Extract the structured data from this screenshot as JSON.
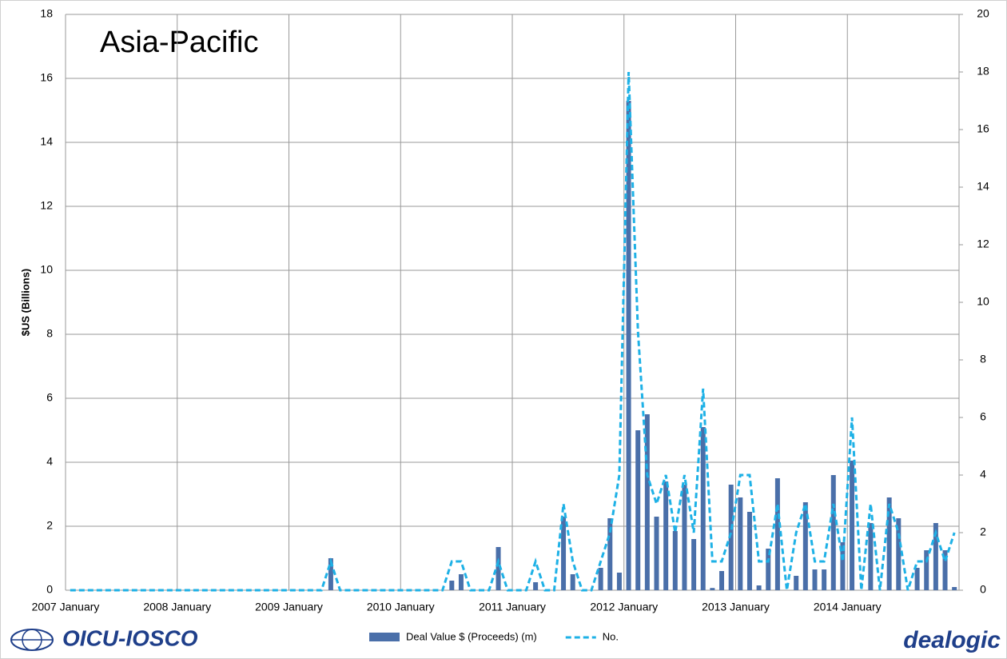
{
  "chart_data": {
    "type": "bar-line",
    "title": "Asia-Pacific",
    "y_label": "$US (Billions)",
    "categories": [
      "2007 January",
      null,
      null,
      null,
      null,
      null,
      null,
      null,
      null,
      null,
      null,
      null,
      "2008 January",
      null,
      null,
      null,
      null,
      null,
      null,
      null,
      null,
      null,
      null,
      null,
      "2009 January",
      null,
      null,
      null,
      null,
      null,
      null,
      null,
      null,
      null,
      null,
      null,
      "2010 January",
      null,
      null,
      null,
      null,
      null,
      null,
      null,
      null,
      null,
      null,
      null,
      "2011 January",
      null,
      null,
      null,
      null,
      null,
      null,
      null,
      null,
      null,
      null,
      null,
      "2012 January",
      null,
      null,
      null,
      null,
      null,
      null,
      null,
      null,
      null,
      null,
      null,
      "2013 January",
      null,
      null,
      null,
      null,
      null,
      null,
      null,
      null,
      null,
      null,
      null,
      "2014 January",
      null,
      null,
      null,
      null,
      null,
      null,
      null,
      null,
      null,
      null,
      null
    ],
    "series": [
      {
        "name": "Deal Value $ (Proceeds) (m)",
        "color": "#4a6fa9",
        "type": "bar",
        "values": [
          0,
          0,
          0,
          0,
          0,
          0,
          0,
          0,
          0,
          0,
          0,
          0,
          0,
          0,
          0,
          0,
          0,
          0,
          0,
          0,
          0,
          0,
          0,
          0,
          0,
          0,
          0,
          0,
          1.0,
          0,
          0,
          0,
          0,
          0,
          0,
          0,
          0,
          0,
          0,
          0,
          0,
          0.3,
          0.5,
          0,
          0,
          0,
          1.35,
          0,
          0,
          0,
          0.25,
          0,
          0,
          2.3,
          0.5,
          0,
          0,
          0.7,
          2.25,
          0.55,
          15.3,
          5.0,
          5.5,
          2.3,
          3.4,
          1.85,
          3.3,
          1.6,
          5.1,
          0.07,
          0.6,
          3.3,
          2.9,
          2.45,
          0.15,
          1.3,
          3.5,
          0,
          0.45,
          2.75,
          0.65,
          0.65,
          3.6,
          1.5,
          4.05,
          0,
          2.1,
          0,
          2.9,
          2.25,
          0,
          0.7,
          1.25,
          2.1,
          1.25,
          0.1
        ]
      },
      {
        "name": "No.",
        "color": "#1eb1e6",
        "type": "line",
        "axis": "y2",
        "values": [
          0,
          0,
          0,
          0,
          0,
          0,
          0,
          0,
          0,
          0,
          0,
          0,
          0,
          0,
          0,
          0,
          0,
          0,
          0,
          0,
          0,
          0,
          0,
          0,
          0,
          0,
          0,
          0,
          1,
          0,
          0,
          0,
          0,
          0,
          0,
          0,
          0,
          0,
          0,
          0,
          0,
          1,
          1,
          0,
          0,
          0,
          1,
          0,
          0,
          0,
          1,
          0,
          0,
          3,
          1,
          0,
          0,
          1,
          2,
          4,
          18,
          9,
          4,
          3,
          4,
          2,
          4,
          2,
          7,
          1,
          1,
          2,
          4,
          4,
          1,
          1,
          3,
          0,
          2,
          3,
          1,
          1,
          3,
          1,
          6,
          0,
          3,
          0,
          3,
          2,
          0,
          1,
          1,
          2,
          1,
          2
        ]
      }
    ],
    "ylim": [
      0,
      18
    ],
    "yticks": [
      0,
      2,
      4,
      6,
      8,
      10,
      12,
      14,
      16,
      18
    ],
    "y2lim": [
      0,
      20
    ],
    "y2ticks": [
      0,
      2,
      4,
      6,
      8,
      10,
      12,
      14,
      16,
      18,
      20
    ],
    "grid": true,
    "legend": "bottom"
  },
  "logos": [
    "OICU-IOSCO",
    "dealogic"
  ]
}
